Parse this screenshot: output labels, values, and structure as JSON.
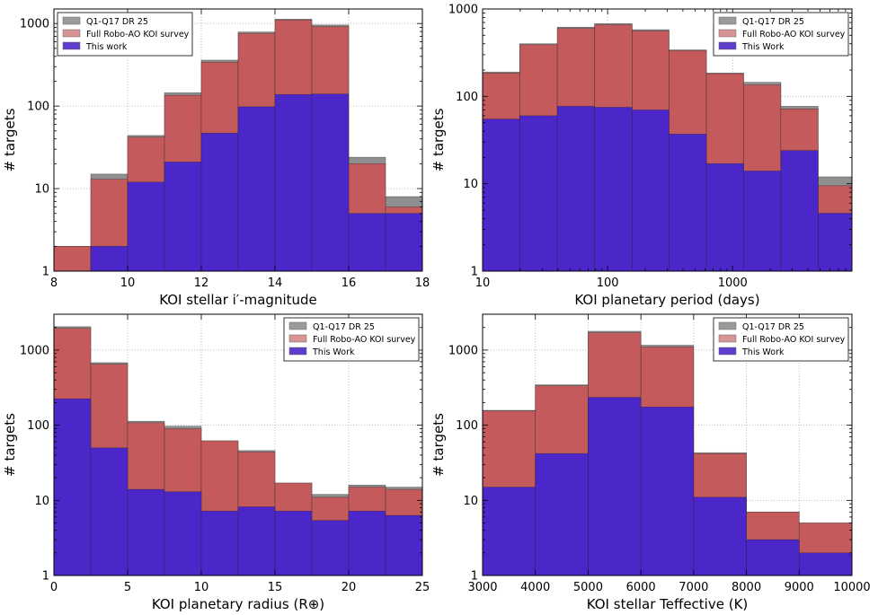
{
  "colors": {
    "dr25": "#8f8f8f",
    "full": "#c45a5c",
    "this": "#4b27c9",
    "grid": "#b0b0b0",
    "edge": "#222222"
  },
  "chart_data": [
    {
      "type": "bar",
      "title": "",
      "xlabel": "KOI stellar i′-magnitude",
      "ylabel": "# targets",
      "xscale": "linear",
      "yscale": "log",
      "xlim": [
        8,
        18
      ],
      "ylim": [
        1,
        1500
      ],
      "xticks": [
        8,
        10,
        12,
        14,
        16,
        18
      ],
      "xtick_labels": [
        "8",
        "10",
        "12",
        "14",
        "16",
        "18"
      ],
      "yticks": [
        1,
        10,
        100,
        1000
      ],
      "ytick_labels": [
        "1",
        "10",
        "100",
        "1000"
      ],
      "bin_edges": [
        8,
        9,
        10,
        11,
        12,
        13,
        14,
        15,
        16,
        17,
        18
      ],
      "legend_position": "top-left",
      "series": [
        {
          "name": "Q1-Q17 DR 25",
          "key": "dr25",
          "values": [
            2,
            15,
            44,
            145,
            360,
            790,
            1130,
            960,
            24,
            8
          ]
        },
        {
          "name": "Full Robo-AO KOI survey",
          "key": "full",
          "values": [
            2,
            13,
            42,
            135,
            340,
            760,
            1100,
            920,
            20,
            6
          ]
        },
        {
          "name": "This work",
          "key": "this",
          "values": [
            1,
            2,
            12,
            21,
            47,
            98,
            138,
            140,
            5,
            5
          ]
        }
      ]
    },
    {
      "type": "bar",
      "title": "",
      "xlabel": "KOI planetary period (days)",
      "ylabel": "# targets",
      "xscale": "log",
      "yscale": "log",
      "xlim": [
        10,
        9000
      ],
      "ylim": [
        1,
        1000
      ],
      "xticks": [
        10,
        100,
        1000
      ],
      "xtick_labels": [
        "10",
        "100",
        "1000"
      ],
      "yticks": [
        1,
        10,
        100,
        1000
      ],
      "ytick_labels": [
        "1",
        "10",
        "100",
        "1000"
      ],
      "bin_edges": [
        10,
        19.8,
        39.6,
        78.6,
        157,
        310,
        617,
        1225,
        2430,
        4830,
        9000
      ],
      "legend_position": "top-right",
      "series": [
        {
          "name": "Q1-Q17 DR 25",
          "key": "dr25",
          "values": [
            190,
            400,
            620,
            680,
            580,
            340,
            185,
            145,
            77,
            12
          ]
        },
        {
          "name": "Full Robo-AO KOI survey",
          "key": "full",
          "values": [
            185,
            390,
            600,
            660,
            560,
            335,
            182,
            135,
            72,
            9.5
          ]
        },
        {
          "name": "This Work",
          "key": "this",
          "values": [
            55,
            60,
            77,
            75,
            70,
            37,
            17,
            14,
            24,
            4.6
          ]
        }
      ]
    },
    {
      "type": "bar",
      "title": "",
      "xlabel": "KOI planetary radius (R⊕)",
      "ylabel": "# targets",
      "xscale": "linear",
      "yscale": "log",
      "xlim": [
        0,
        25
      ],
      "ylim": [
        1,
        3000
      ],
      "xticks": [
        0,
        5,
        10,
        15,
        20,
        25
      ],
      "xtick_labels": [
        "0",
        "5",
        "10",
        "15",
        "20",
        "25"
      ],
      "yticks": [
        1,
        10,
        100,
        1000
      ],
      "ytick_labels": [
        "1",
        "10",
        "100",
        "1000"
      ],
      "bin_edges": [
        0,
        2.5,
        5,
        7.5,
        10,
        12.5,
        15,
        17.5,
        20,
        22.5,
        25
      ],
      "legend_position": "top-right",
      "series": [
        {
          "name": "Q1-Q17 DR 25",
          "key": "dr25",
          "values": [
            2050,
            680,
            113,
            97,
            62,
            46,
            17,
            12,
            16,
            15
          ]
        },
        {
          "name": "Full Robo-AO KOI survey",
          "key": "full",
          "values": [
            1950,
            650,
            108,
            90,
            62,
            44,
            17,
            11,
            15,
            14
          ]
        },
        {
          "name": "This Work",
          "key": "this",
          "values": [
            225,
            50,
            14,
            13,
            7.2,
            8.2,
            7.2,
            5.4,
            7.2,
            6.3
          ]
        }
      ]
    },
    {
      "type": "bar",
      "title": "",
      "xlabel": "KOI stellar Teffective (K)",
      "ylabel": "# targets",
      "xscale": "linear",
      "yscale": "log",
      "xlim": [
        3000,
        10000
      ],
      "ylim": [
        1,
        3000
      ],
      "xticks": [
        3000,
        4000,
        5000,
        6000,
        7000,
        8000,
        9000,
        10000
      ],
      "xtick_labels": [
        "3000",
        "4000",
        "5000",
        "6000",
        "7000",
        "8000",
        "9000",
        "10000"
      ],
      "yticks": [
        1,
        10,
        100,
        1000
      ],
      "ytick_labels": [
        "1",
        "10",
        "100",
        "1000"
      ],
      "bin_edges": [
        3000,
        4000,
        5000,
        6000,
        7000,
        8000,
        9000,
        10000
      ],
      "legend_position": "top-right",
      "series": [
        {
          "name": "Q1-Q17 DR 25",
          "key": "dr25",
          "values": [
            158,
            345,
            1780,
            1160,
            43,
            7,
            5
          ]
        },
        {
          "name": "Full Robo-AO KOI survey",
          "key": "full",
          "values": [
            155,
            335,
            1700,
            1100,
            42,
            7,
            5
          ]
        },
        {
          "name": "This Work",
          "key": "this",
          "values": [
            15,
            42,
            235,
            175,
            11,
            3,
            2
          ]
        }
      ]
    }
  ]
}
